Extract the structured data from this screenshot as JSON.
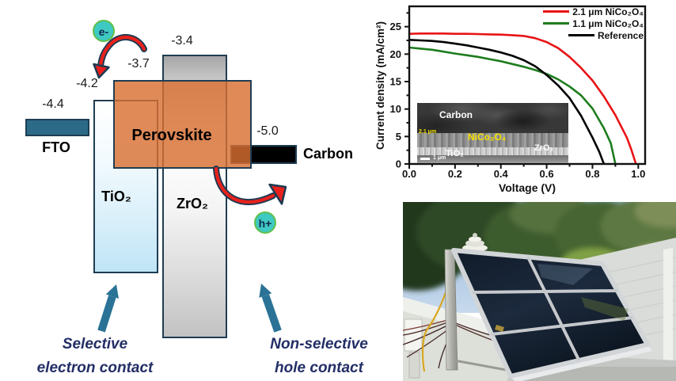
{
  "figure": {
    "background": "#ffffff"
  },
  "diagram": {
    "particles": {
      "electron": "e-",
      "hole": "h+"
    },
    "levels": {
      "fto": "-4.4",
      "tio2": "-4.2",
      "perovskite": "-3.7",
      "zro2": "-3.4",
      "carbon": "-5.0"
    },
    "layers": {
      "fto": "FTO",
      "tio2": "TiO₂",
      "zro2": "ZrO₂",
      "perovskite": "Perovskite",
      "carbon": "Carbon"
    },
    "captions": {
      "electron_line1": "Selective",
      "electron_line2": "electron contact",
      "hole_line1": "Non-selective",
      "hole_line2": "hole contact"
    },
    "colors": {
      "fto_bar": "#2b6b88",
      "perovskite": "rgba(217,111,49,0.81)",
      "arrow_teal": "#2a7396",
      "arrow_red": "#e8211c",
      "arrow_outline": "#1b3a52",
      "particle_fill": "#3ec9c2",
      "particle_border": "#62c04a",
      "caption_text": "#232e66"
    }
  },
  "chart_data": {
    "type": "line",
    "title": "",
    "xlabel": "Voltage (V)",
    "ylabel": "Current density (mA/cm²)",
    "xlim": [
      0,
      1.03
    ],
    "ylim": [
      0,
      28.7
    ],
    "xticks": [
      0,
      0.2,
      0.4,
      0.6,
      0.8,
      1.0
    ],
    "xtick_labels": [
      "0.0",
      "0.2",
      "0.4",
      "0.6",
      "0.8",
      "1.0"
    ],
    "xticks_minor": [
      0.1,
      0.3,
      0.5,
      0.7,
      0.9
    ],
    "yticks": [
      0,
      5,
      10,
      15,
      20,
      25
    ],
    "ytick_labels": [
      "0",
      "5",
      "10",
      "15",
      "20",
      "25"
    ],
    "yticks_minor": [
      2.5,
      7.5,
      12.5,
      17.5,
      22.5,
      27.5
    ],
    "grid": false,
    "legend_position": "top-right",
    "series": [
      {
        "name": "2.1 μm NiCo₂O₄",
        "color": "#e81416",
        "points": [
          [
            0,
            23.7
          ],
          [
            0.05,
            23.75
          ],
          [
            0.1,
            23.75
          ],
          [
            0.15,
            23.75
          ],
          [
            0.2,
            23.7
          ],
          [
            0.25,
            23.7
          ],
          [
            0.3,
            23.65
          ],
          [
            0.35,
            23.6
          ],
          [
            0.4,
            23.55
          ],
          [
            0.45,
            23.45
          ],
          [
            0.5,
            23.3
          ],
          [
            0.55,
            22.9
          ],
          [
            0.6,
            22.2
          ],
          [
            0.65,
            21.1
          ],
          [
            0.7,
            19.5
          ],
          [
            0.75,
            17.5
          ],
          [
            0.8,
            15.2
          ],
          [
            0.85,
            12.3
          ],
          [
            0.9,
            8.9
          ],
          [
            0.95,
            4.8
          ],
          [
            0.97,
            2.6
          ],
          [
            0.99,
            0
          ]
        ]
      },
      {
        "name": "1.1 μm NiCo₂O₄",
        "color": "#1e7d1e",
        "points": [
          [
            0,
            21.2
          ],
          [
            0.05,
            21.0
          ],
          [
            0.1,
            20.8
          ],
          [
            0.15,
            20.45
          ],
          [
            0.2,
            20.1
          ],
          [
            0.25,
            19.8
          ],
          [
            0.3,
            19.5
          ],
          [
            0.35,
            19.1
          ],
          [
            0.4,
            18.7
          ],
          [
            0.45,
            18.2
          ],
          [
            0.5,
            17.7
          ],
          [
            0.55,
            17.1
          ],
          [
            0.6,
            16.4
          ],
          [
            0.65,
            15.4
          ],
          [
            0.7,
            14.1
          ],
          [
            0.75,
            12.5
          ],
          [
            0.8,
            10.1
          ],
          [
            0.85,
            6.5
          ],
          [
            0.88,
            3.8
          ],
          [
            0.9,
            0
          ]
        ]
      },
      {
        "name": "Reference",
        "color": "#000000",
        "points": [
          [
            0,
            22.6
          ],
          [
            0.05,
            22.5
          ],
          [
            0.1,
            22.4
          ],
          [
            0.15,
            22.2
          ],
          [
            0.2,
            21.9
          ],
          [
            0.25,
            21.6
          ],
          [
            0.3,
            21.2
          ],
          [
            0.35,
            20.8
          ],
          [
            0.4,
            20.3
          ],
          [
            0.45,
            19.7
          ],
          [
            0.5,
            18.9
          ],
          [
            0.55,
            17.8
          ],
          [
            0.6,
            16.2
          ],
          [
            0.65,
            14.3
          ],
          [
            0.7,
            12.0
          ],
          [
            0.75,
            8.8
          ],
          [
            0.8,
            4.8
          ],
          [
            0.83,
            2.2
          ],
          [
            0.85,
            0
          ]
        ]
      }
    ],
    "inset": {
      "carbon": "Carbon",
      "thickness": "2.1 μm",
      "nico": "NiCo₂O₄",
      "zro2": "ZrO₂",
      "tio2": "TiO₂",
      "scalebar": "1 μm"
    }
  },
  "photo": {
    "colors": {
      "sky": "#8fb3da",
      "foliage": "#3d5c2e",
      "roof": "#d9dcd9",
      "panel": "#141f2e",
      "frame": "#cfd2d4"
    }
  }
}
